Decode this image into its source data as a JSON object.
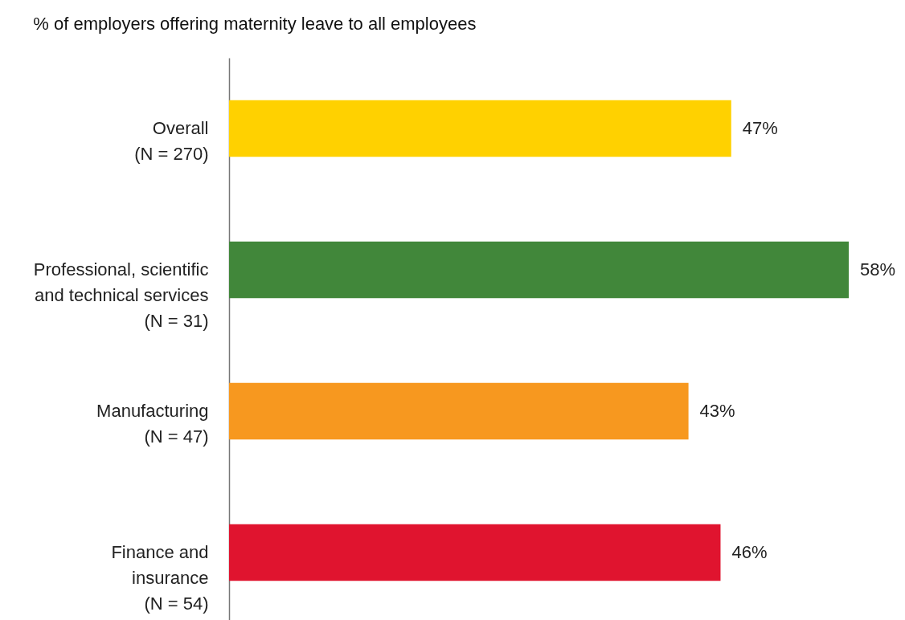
{
  "chart_data": {
    "type": "bar",
    "orientation": "horizontal",
    "title": "% of employers offering maternity leave to all employees",
    "categories": [
      "Overall\n(N = 270)",
      "Professional, scientific\nand technical services\n(N = 31)",
      "Manufacturing\n(N = 47)",
      "Finance and\ninsurance\n(N = 54)"
    ],
    "values": [
      47,
      58,
      43,
      46
    ],
    "colors": [
      "#ffd100",
      "#41873a",
      "#f7981f",
      "#e0142f"
    ],
    "value_labels": [
      "47%",
      "58%",
      "43%",
      "46%"
    ]
  }
}
